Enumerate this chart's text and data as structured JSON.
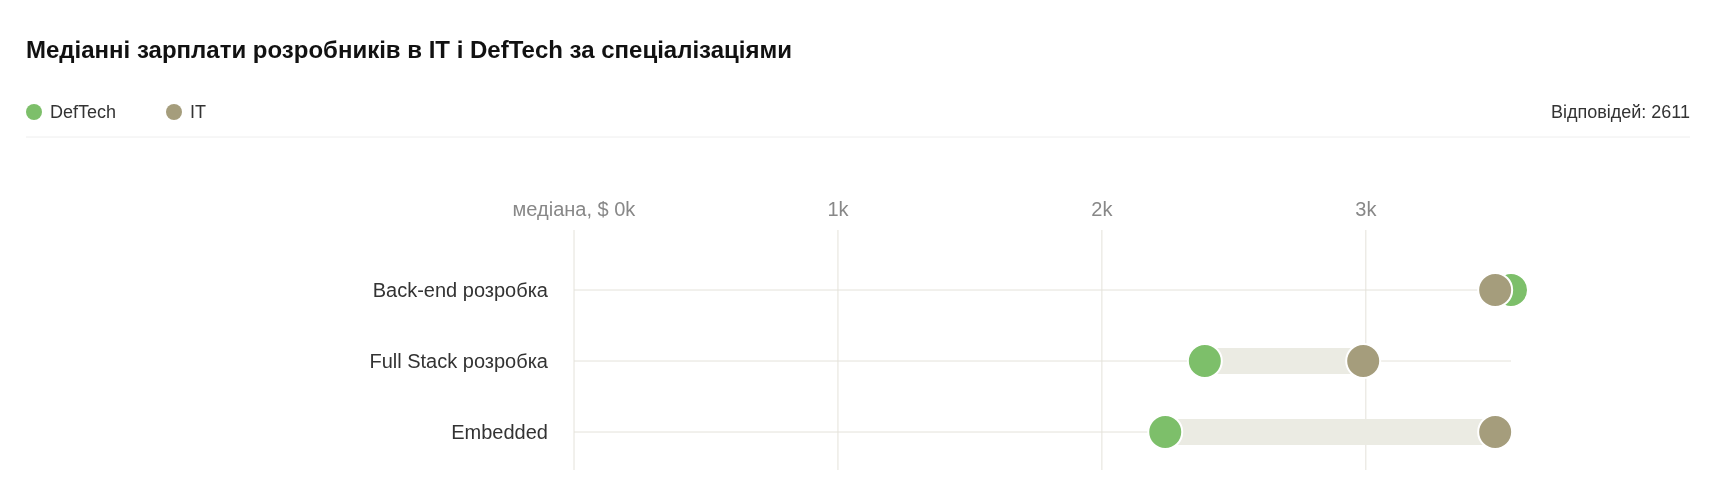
{
  "chart_data": {
    "type": "scatter",
    "orientation": "horizontal",
    "title": "Медіанні зарплати розробників в IT і DefTech за спеціалізаціями",
    "annotations": [
      "Відповідей: 2611"
    ],
    "categories": [
      "Back-end розробка",
      "Full Stack розробка",
      "Embedded"
    ],
    "series": [
      {
        "name": "DefTech",
        "color": "#7dbf6a",
        "values": [
          3550,
          2390,
          2240
        ]
      },
      {
        "name": "IT",
        "color": "#a59d7c",
        "values": [
          3490,
          2990,
          3490
        ]
      }
    ],
    "xlim": [
      0,
      3550
    ],
    "xticks": [
      {
        "value": 0,
        "label": "медіана, $ 0k"
      },
      {
        "value": 1000,
        "label": "1k"
      },
      {
        "value": 2000,
        "label": "2k"
      },
      {
        "value": 3000,
        "label": "3k"
      }
    ],
    "grid": true,
    "legend": "top left",
    "marker": "circle"
  }
}
